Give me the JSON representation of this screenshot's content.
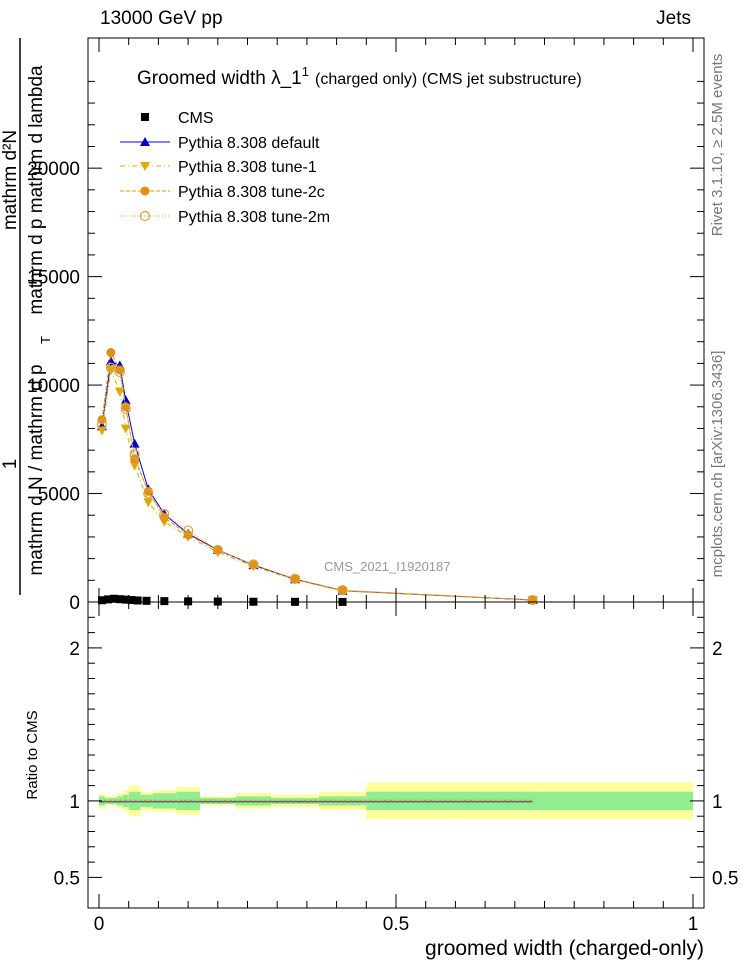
{
  "header": {
    "left": "13000 GeV pp",
    "right": "Jets"
  },
  "side_labels": {
    "rivet": "Rivet 3.1.10, ≥ 2.5M events",
    "mcplots": "mcplots.cern.ch [arXiv:1306.3436]"
  },
  "colors": {
    "data": "#000000",
    "default": "#0000cc",
    "tune1": "#ddaa00",
    "tune2c": "#e09010",
    "tune2m": "#e0a040",
    "band_inner": "#90ee90",
    "band_outer": "#ffff99"
  },
  "chart_data": [
    {
      "type": "line",
      "title_main": "Groomed width  λ_1",
      "title_sup": "1",
      "title_rest": "(charged only) (CMS jet substructure)",
      "watermark": "CMS_2021_I1920187",
      "ylabel": {
        "numerator": "1",
        "numerator_right": "mathrm d²N",
        "denominator_left": "mathrm d N / mathrm d p",
        "denominator_mid": "mathrm d p  mathrm d lambda",
        "sub_t": "T"
      },
      "xlim": [
        0,
        1
      ],
      "ylim": [
        0,
        26000
      ],
      "yticks": [
        0,
        5000,
        10000,
        15000,
        20000
      ],
      "ytick_labels": [
        "0",
        "5000",
        "10000",
        "15000",
        "20000"
      ],
      "legend_position": "top-left",
      "series": [
        {
          "name": "CMS",
          "key": "data",
          "marker": "square",
          "x": [
            0.005,
            0.015,
            0.025,
            0.035,
            0.045,
            0.055,
            0.065,
            0.08,
            0.11,
            0.15,
            0.2,
            0.26,
            0.33,
            0.41
          ],
          "y": [
            80,
            120,
            150,
            130,
            110,
            90,
            70,
            55,
            40,
            30,
            20,
            12,
            8,
            4
          ]
        },
        {
          "name": "Pythia 8.308 default",
          "key": "default",
          "marker": "triangle-up",
          "dash": "",
          "x": [
            0.005,
            0.02,
            0.035,
            0.045,
            0.06,
            0.083,
            0.11,
            0.15,
            0.2,
            0.26,
            0.33,
            0.41,
            0.73
          ],
          "y": [
            8100,
            11100,
            10900,
            9300,
            7300,
            5200,
            4050,
            3150,
            2400,
            1700,
            1050,
            520,
            90
          ]
        },
        {
          "name": "Pythia 8.308 tune-1",
          "key": "tune1",
          "marker": "triangle-down",
          "dash": "5,3,1,3",
          "x": [
            0.005,
            0.02,
            0.035,
            0.045,
            0.06,
            0.083,
            0.11,
            0.15,
            0.2,
            0.26,
            0.33,
            0.41,
            0.73
          ],
          "y": [
            7900,
            10700,
            9700,
            8000,
            6300,
            4600,
            3700,
            3000,
            2300,
            1650,
            1020,
            510,
            90
          ]
        },
        {
          "name": "Pythia 8.308 tune-2c",
          "key": "tune2c",
          "marker": "circle",
          "dash": "4,2",
          "x": [
            0.005,
            0.02,
            0.035,
            0.045,
            0.06,
            0.083,
            0.11,
            0.15,
            0.2,
            0.26,
            0.33,
            0.41,
            0.73
          ],
          "y": [
            8400,
            11500,
            10700,
            9000,
            6600,
            5100,
            3900,
            3100,
            2380,
            1720,
            1060,
            530,
            90
          ]
        },
        {
          "name": "Pythia 8.308 tune-2m",
          "key": "tune2m",
          "marker": "circle-open",
          "dash": "1,2",
          "x": [
            0.005,
            0.02,
            0.035,
            0.045,
            0.06,
            0.083,
            0.11,
            0.15,
            0.2,
            0.26,
            0.33,
            0.41,
            0.73
          ],
          "y": [
            8200,
            10800,
            10600,
            8900,
            6800,
            5000,
            4050,
            3300,
            2400,
            1730,
            1070,
            540,
            90
          ]
        }
      ]
    },
    {
      "type": "area",
      "ylabel": "Ratio to CMS",
      "xlabel": "groomed width (charged-only)",
      "xlim": [
        0,
        1
      ],
      "ylim": [
        0.3,
        2.3
      ],
      "yticks": [
        0.5,
        1,
        2
      ],
      "ytick_labels": [
        "0.5",
        "1",
        "2"
      ],
      "xticks": [
        0,
        0.5,
        1
      ],
      "xtick_labels": [
        "0",
        "0.5",
        "1"
      ],
      "bins": [
        {
          "x0": 0.0,
          "x1": 0.01,
          "inner": 0.03,
          "outer": 0.05
        },
        {
          "x0": 0.01,
          "x1": 0.03,
          "inner": 0.02,
          "outer": 0.03
        },
        {
          "x0": 0.03,
          "x1": 0.04,
          "inner": 0.03,
          "outer": 0.05
        },
        {
          "x0": 0.04,
          "x1": 0.05,
          "inner": 0.04,
          "outer": 0.07
        },
        {
          "x0": 0.05,
          "x1": 0.07,
          "inner": 0.06,
          "outer": 0.1
        },
        {
          "x0": 0.07,
          "x1": 0.09,
          "inner": 0.04,
          "outer": 0.06
        },
        {
          "x0": 0.09,
          "x1": 0.13,
          "inner": 0.05,
          "outer": 0.07
        },
        {
          "x0": 0.13,
          "x1": 0.17,
          "inner": 0.06,
          "outer": 0.09
        },
        {
          "x0": 0.17,
          "x1": 0.23,
          "inner": 0.02,
          "outer": 0.03
        },
        {
          "x0": 0.23,
          "x1": 0.29,
          "inner": 0.03,
          "outer": 0.05
        },
        {
          "x0": 0.29,
          "x1": 0.37,
          "inner": 0.02,
          "outer": 0.04
        },
        {
          "x0": 0.37,
          "x1": 0.45,
          "inner": 0.03,
          "outer": 0.06
        },
        {
          "x0": 0.45,
          "x1": 1.0,
          "inner": 0.06,
          "outer": 0.12
        }
      ]
    }
  ]
}
